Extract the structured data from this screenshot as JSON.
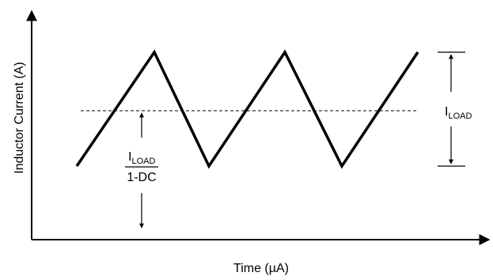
{
  "diagram": {
    "x_axis_label": "Time (µA)",
    "y_axis_label": "Inductor Current (A)",
    "ripple_label": {
      "main": "I",
      "sub": "LOAD"
    },
    "average_label": {
      "numerator": {
        "main": "I",
        "sub": "LOAD"
      },
      "denominator": "1-DC"
    },
    "waveform": "triangle",
    "reference_line": "dashed",
    "colors": {
      "stroke": "#000000",
      "background": "#ffffff"
    }
  }
}
